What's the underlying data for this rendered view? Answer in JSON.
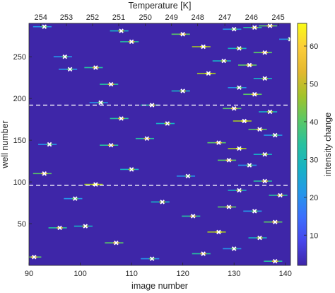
{
  "chart_data": {
    "type": "heatmap",
    "title": "",
    "xlabel": "image number",
    "ylabel": "well number",
    "top_xlabel": "Temperature [K]",
    "colorbar_label": "intensity change",
    "xlim": [
      90,
      141
    ],
    "ylim": [
      0,
      290
    ],
    "x_ticks": [
      90,
      100,
      110,
      120,
      130,
      140
    ],
    "y_ticks": [
      50,
      100,
      150,
      200,
      250
    ],
    "top_ticks": [
      {
        "label": "254",
        "x": 92.3
      },
      {
        "label": "253",
        "x": 97.3
      },
      {
        "label": "252",
        "x": 102.4
      },
      {
        "label": "251",
        "x": 107.5
      },
      {
        "label": "250",
        "x": 112.7
      },
      {
        "label": "249",
        "x": 117.8
      },
      {
        "label": "248",
        "x": 122.9
      },
      {
        "label": "247",
        "x": 128.2
      },
      {
        "label": "246",
        "x": 133.4
      },
      {
        "label": "245",
        "x": 138.6
      }
    ],
    "colorbar_ticks": [
      10,
      20,
      30,
      40,
      50,
      60
    ],
    "colorbar_range": [
      2,
      66
    ],
    "colormap": [
      "#3e26a8",
      "#4746eb",
      "#3c6ffd",
      "#2497e9",
      "#17b2c5",
      "#27c19f",
      "#5ac865",
      "#a2c329",
      "#e4b82f",
      "#fccd39",
      "#f9fb15"
    ],
    "background_color": "#3e26a8",
    "dashed_lines_y": [
      192,
      96
    ],
    "marker": "x",
    "marker_color": "#ffffff",
    "freezing_events": [
      {
        "well": 286,
        "image": 93
      },
      {
        "well": 281,
        "image": 108
      },
      {
        "well": 277,
        "image": 120
      },
      {
        "well": 283,
        "image": 130
      },
      {
        "well": 285,
        "image": 134
      },
      {
        "well": 287,
        "image": 137
      },
      {
        "well": 271,
        "image": 141
      },
      {
        "well": 268,
        "image": 110
      },
      {
        "well": 262,
        "image": 124
      },
      {
        "well": 260,
        "image": 131
      },
      {
        "well": 255,
        "image": 136
      },
      {
        "well": 250,
        "image": 97
      },
      {
        "well": 245,
        "image": 128
      },
      {
        "well": 240,
        "image": 133
      },
      {
        "well": 235,
        "image": 98
      },
      {
        "well": 237,
        "image": 103
      },
      {
        "well": 230,
        "image": 125
      },
      {
        "well": 224,
        "image": 136
      },
      {
        "well": 217,
        "image": 106
      },
      {
        "well": 213,
        "image": 131
      },
      {
        "well": 209,
        "image": 120
      },
      {
        "well": 205,
        "image": 134
      },
      {
        "well": 195,
        "image": 104
      },
      {
        "well": 192,
        "image": 114
      },
      {
        "well": 188,
        "image": 130
      },
      {
        "well": 184,
        "image": 137
      },
      {
        "well": 176,
        "image": 108
      },
      {
        "well": 173,
        "image": 132
      },
      {
        "well": 170,
        "image": 117
      },
      {
        "well": 163,
        "image": 135
      },
      {
        "well": 156,
        "image": 138
      },
      {
        "well": 152,
        "image": 113
      },
      {
        "well": 147,
        "image": 127
      },
      {
        "well": 145,
        "image": 94
      },
      {
        "well": 144,
        "image": 106
      },
      {
        "well": 140,
        "image": 131
      },
      {
        "well": 133,
        "image": 136
      },
      {
        "well": 126,
        "image": 129
      },
      {
        "well": 120,
        "image": 133
      },
      {
        "well": 115,
        "image": 110
      },
      {
        "well": 110,
        "image": 93
      },
      {
        "well": 107,
        "image": 121
      },
      {
        "well": 101,
        "image": 136
      },
      {
        "well": 97,
        "image": 103
      },
      {
        "well": 90,
        "image": 131
      },
      {
        "well": 84,
        "image": 139
      },
      {
        "well": 80,
        "image": 99
      },
      {
        "well": 76,
        "image": 116
      },
      {
        "well": 70,
        "image": 129
      },
      {
        "well": 65,
        "image": 134
      },
      {
        "well": 59,
        "image": 122
      },
      {
        "well": 52,
        "image": 138
      },
      {
        "well": 47,
        "image": 101
      },
      {
        "well": 45,
        "image": 96
      },
      {
        "well": 40,
        "image": 127
      },
      {
        "well": 33,
        "image": 135
      },
      {
        "well": 27,
        "image": 107
      },
      {
        "well": 20,
        "image": 130
      },
      {
        "well": 14,
        "image": 124
      },
      {
        "well": 10,
        "image": 91
      },
      {
        "well": 8,
        "image": 114
      },
      {
        "well": 5,
        "image": 138
      }
    ]
  }
}
